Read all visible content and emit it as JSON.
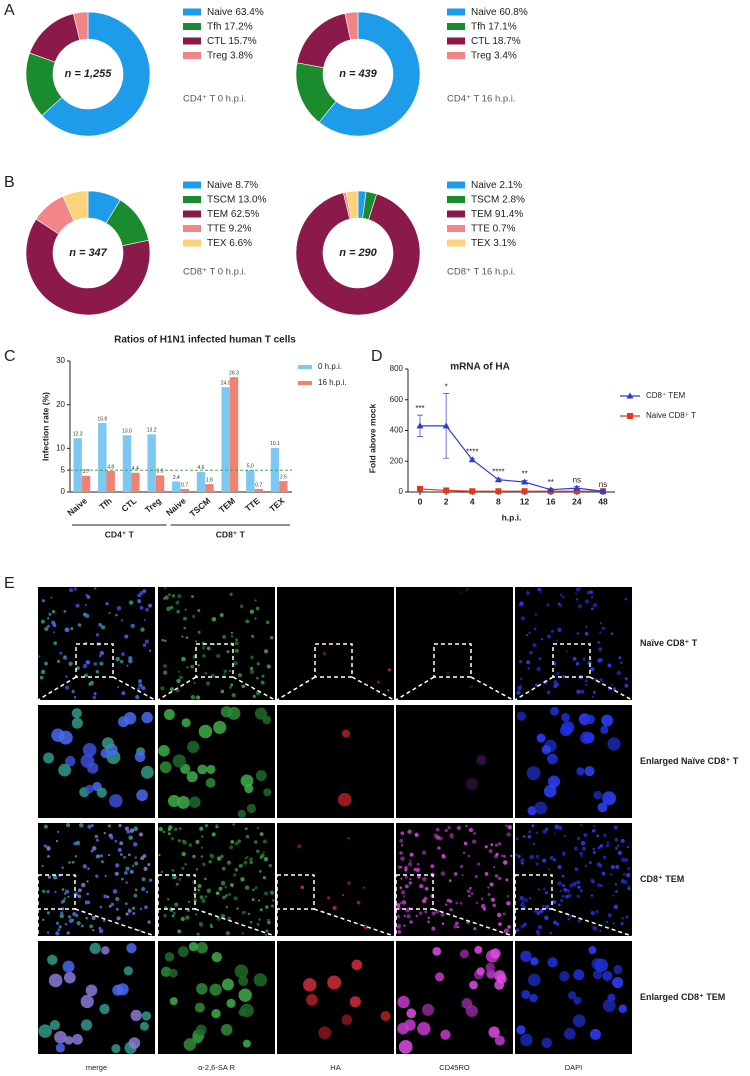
{
  "panel_labels": [
    "A",
    "B",
    "C",
    "D",
    "E"
  ],
  "chart_data": [
    {
      "type": "pie",
      "center_label": "n = 1,255",
      "subtitle": "CD4⁺ T 0 h.p.i.",
      "categories": [
        "Naive",
        "Tfh",
        "CTL",
        "Treg"
      ],
      "values": [
        63.4,
        17.2,
        15.7,
        3.8
      ],
      "value_labels": [
        "63.4%",
        "17.2%",
        "15.7%",
        "3.8%"
      ],
      "colors": [
        "#1e9be9",
        "#1a8c2e",
        "#8b1a4a",
        "#f28585"
      ]
    },
    {
      "type": "pie",
      "center_label": "n = 439",
      "subtitle": "CD4⁺ T 16 h.p.i.",
      "categories": [
        "Naive",
        "Tfh",
        "CTL",
        "Treg"
      ],
      "values": [
        60.8,
        17.1,
        18.7,
        3.4
      ],
      "value_labels": [
        "60.8%",
        "17.1%",
        "18.7%",
        "3.4%"
      ],
      "colors": [
        "#1e9be9",
        "#1a8c2e",
        "#8b1a4a",
        "#f28585"
      ]
    },
    {
      "type": "pie",
      "center_label": "n = 347",
      "subtitle": "CD8⁺ T 0 h.p.i.",
      "categories": [
        "Naive",
        "TSCM",
        "TEM",
        "TTE",
        "TEX"
      ],
      "values": [
        8.7,
        13.0,
        62.5,
        9.2,
        6.6
      ],
      "value_labels": [
        "8.7%",
        "13.0%",
        "62.5%",
        "9.2%",
        "6.6%"
      ],
      "colors": [
        "#1e9be9",
        "#1a8c2e",
        "#8b1a4a",
        "#f28585",
        "#fcd27a"
      ]
    },
    {
      "type": "pie",
      "center_label": "n = 290",
      "subtitle": "CD8⁺ T 16 h.p.i.",
      "categories": [
        "Naive",
        "TSCM",
        "TEM",
        "TTE",
        "TEX"
      ],
      "values": [
        2.1,
        2.8,
        91.4,
        0.7,
        3.1
      ],
      "value_labels": [
        "2.1%",
        "2.8%",
        "91.4%",
        "0.7%",
        "3.1%"
      ],
      "colors": [
        "#1e9be9",
        "#1a8c2e",
        "#8b1a4a",
        "#f28585",
        "#fcd27a"
      ]
    },
    {
      "type": "bar",
      "title": "Ratios of H1N1 infected human T cells",
      "y_label": "Infection rate (%)",
      "categories": [
        "Naive",
        "Tfh",
        "CTL",
        "Treg",
        "Naive",
        "TSCM",
        "TEM",
        "TTE",
        "TEX"
      ],
      "groups": [
        "CD4⁺ T",
        "CD8⁺ T"
      ],
      "series": [
        {
          "name": "0 h.p.i.",
          "color": "#7cc8f2",
          "values": [
            12.3,
            15.8,
            13.0,
            13.2,
            2.4,
            4.6,
            24.0,
            5.0,
            10.1
          ],
          "value_labels": [
            "12.3",
            "15.8",
            "13.0",
            "13.2",
            "2.4",
            "4.6",
            "24.0",
            "5.0",
            "10.1"
          ]
        },
        {
          "name": "16 h.p.i.",
          "color": "#f0826f",
          "values": [
            3.7,
            4.8,
            4.4,
            3.8,
            0.7,
            1.8,
            26.3,
            0.7,
            2.5
          ],
          "value_labels": [
            "3.7",
            "4.8",
            "4.4",
            "3.8",
            "0.7",
            "1.8",
            "26.3",
            "0.7",
            "2.5"
          ]
        }
      ],
      "reference_line": 5,
      "ylim": [
        0,
        30
      ],
      "yticks": [
        0,
        5,
        10,
        20,
        30
      ]
    },
    {
      "type": "line",
      "title": "mRNA of HA",
      "x_label": "h.p.i.",
      "y_label": "Fold above mock",
      "categories": [
        "0",
        "2",
        "4",
        "8",
        "12",
        "16",
        "24",
        "48"
      ],
      "series": [
        {
          "name": "CD8⁺ TEM",
          "color": "#2a3fd0",
          "marker": "triangle",
          "values": [
            430,
            430,
            210,
            80,
            65,
            15,
            25,
            5
          ],
          "errors": [
            70,
            210,
            10,
            8,
            10,
            5,
            10,
            3
          ]
        },
        {
          "name": "Naive CD8⁺ T",
          "color": "#e8361e",
          "marker": "square",
          "values": [
            20,
            10,
            5,
            5,
            5,
            5,
            5,
            5
          ]
        }
      ],
      "annotations": [
        "***",
        "*",
        "****",
        "****",
        "**",
        "**",
        "ns",
        "ns"
      ],
      "ylim": [
        0,
        800
      ],
      "yticks": [
        0,
        200,
        400,
        600,
        800
      ]
    }
  ],
  "microscopy": {
    "columns": [
      "merge",
      "α-2,6-SA R",
      "HA",
      "CD45RO",
      "DAPI"
    ],
    "rows": [
      "Naïve CD8⁺ T",
      "Enlarged Naïve CD8⁺ T",
      "CD8⁺ TEM",
      "Enlarged CD8⁺ TEM"
    ]
  }
}
